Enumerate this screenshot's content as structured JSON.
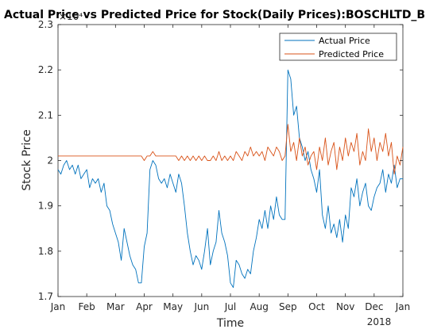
{
  "chart_data": {
    "type": "line",
    "title": "Actual Price vs Predicted Price for Stock(Daily Prices):BOSCHLTD_B",
    "xlabel": "Time",
    "ylabel": "Stock Price",
    "y_exponent_label": "×10⁴",
    "year_label": "2018",
    "xlim": [
      0,
      12
    ],
    "ylim": [
      1.7,
      2.3
    ],
    "x_ticks": [
      {
        "label": "Jan",
        "value": 0
      },
      {
        "label": "Feb",
        "value": 1
      },
      {
        "label": "Mar",
        "value": 2
      },
      {
        "label": "Apr",
        "value": 3
      },
      {
        "label": "May",
        "value": 4
      },
      {
        "label": "Jun",
        "value": 5
      },
      {
        "label": "Jul",
        "value": 6
      },
      {
        "label": "Aug",
        "value": 7
      },
      {
        "label": "Sep",
        "value": 8
      },
      {
        "label": "Oct",
        "value": 9
      },
      {
        "label": "Nov",
        "value": 10
      },
      {
        "label": "Dec",
        "value": 11
      },
      {
        "label": "Jan",
        "value": 12
      }
    ],
    "y_ticks": [
      1.7,
      1.8,
      1.9,
      2.0,
      2.1,
      2.2,
      2.3
    ],
    "y_tick_labels": [
      "1.7",
      "1.8",
      "1.9",
      "2",
      "2.1",
      "2.2",
      "2.3"
    ],
    "grid": false,
    "legend_position": "top-right",
    "series": [
      {
        "name": "Actual Price",
        "color": "#0072BD",
        "x": [
          0.0,
          0.1,
          0.2,
          0.3,
          0.4,
          0.5,
          0.6,
          0.7,
          0.8,
          0.9,
          1.0,
          1.1,
          1.2,
          1.3,
          1.4,
          1.5,
          1.6,
          1.7,
          1.8,
          1.9,
          2.0,
          2.1,
          2.2,
          2.3,
          2.4,
          2.5,
          2.6,
          2.7,
          2.8,
          2.9,
          3.0,
          3.1,
          3.2,
          3.3,
          3.4,
          3.5,
          3.6,
          3.7,
          3.8,
          3.9,
          4.0,
          4.1,
          4.2,
          4.3,
          4.4,
          4.5,
          4.6,
          4.7,
          4.8,
          4.9,
          5.0,
          5.1,
          5.2,
          5.3,
          5.4,
          5.5,
          5.6,
          5.7,
          5.8,
          5.9,
          6.0,
          6.1,
          6.2,
          6.3,
          6.4,
          6.5,
          6.6,
          6.7,
          6.8,
          6.9,
          7.0,
          7.1,
          7.2,
          7.3,
          7.4,
          7.5,
          7.6,
          7.7,
          7.8,
          7.9,
          8.0,
          8.1,
          8.2,
          8.3,
          8.4,
          8.5,
          8.6,
          8.7,
          8.8,
          8.9,
          9.0,
          9.1,
          9.2,
          9.3,
          9.4,
          9.5,
          9.6,
          9.7,
          9.8,
          9.9,
          10.0,
          10.1,
          10.2,
          10.3,
          10.4,
          10.5,
          10.6,
          10.7,
          10.8,
          10.9,
          11.0,
          11.1,
          11.2,
          11.3,
          11.4,
          11.5,
          11.6,
          11.7,
          11.8,
          11.9,
          12.0
        ],
        "values": [
          1.98,
          1.97,
          1.99,
          2.0,
          1.98,
          1.99,
          1.97,
          1.99,
          1.96,
          1.97,
          1.98,
          1.94,
          1.96,
          1.95,
          1.96,
          1.93,
          1.95,
          1.9,
          1.89,
          1.86,
          1.84,
          1.82,
          1.78,
          1.85,
          1.82,
          1.79,
          1.77,
          1.76,
          1.73,
          1.73,
          1.81,
          1.84,
          1.98,
          2.0,
          1.99,
          1.96,
          1.95,
          1.96,
          1.94,
          1.97,
          1.95,
          1.93,
          1.97,
          1.95,
          1.9,
          1.84,
          1.8,
          1.77,
          1.79,
          1.78,
          1.76,
          1.8,
          1.85,
          1.77,
          1.8,
          1.82,
          1.89,
          1.84,
          1.82,
          1.79,
          1.73,
          1.72,
          1.78,
          1.77,
          1.75,
          1.74,
          1.76,
          1.75,
          1.8,
          1.83,
          1.87,
          1.85,
          1.89,
          1.85,
          1.9,
          1.87,
          1.92,
          1.88,
          1.87,
          1.87,
          2.2,
          2.18,
          2.1,
          2.12,
          2.05,
          2.03,
          2.0,
          2.02,
          1.98,
          1.96,
          1.93,
          1.98,
          1.88,
          1.85,
          1.9,
          1.84,
          1.86,
          1.83,
          1.87,
          1.82,
          1.88,
          1.85,
          1.94,
          1.92,
          1.96,
          1.9,
          1.93,
          1.95,
          1.9,
          1.89,
          1.92,
          1.94,
          1.95,
          1.98,
          1.93,
          1.97,
          1.95,
          1.99,
          1.94,
          1.96,
          1.96
        ]
      },
      {
        "name": "Predicted Price",
        "color": "#D95319",
        "x": [
          0.0,
          0.1,
          0.2,
          0.3,
          0.4,
          0.5,
          0.6,
          0.7,
          0.8,
          0.9,
          1.0,
          1.1,
          1.2,
          1.3,
          1.4,
          1.5,
          1.6,
          1.7,
          1.8,
          1.9,
          2.0,
          2.1,
          2.2,
          2.3,
          2.4,
          2.5,
          2.6,
          2.7,
          2.8,
          2.9,
          3.0,
          3.1,
          3.2,
          3.3,
          3.4,
          3.5,
          3.6,
          3.7,
          3.8,
          3.9,
          4.0,
          4.1,
          4.2,
          4.3,
          4.4,
          4.5,
          4.6,
          4.7,
          4.8,
          4.9,
          5.0,
          5.1,
          5.2,
          5.3,
          5.4,
          5.5,
          5.6,
          5.7,
          5.8,
          5.9,
          6.0,
          6.1,
          6.2,
          6.3,
          6.4,
          6.5,
          6.6,
          6.7,
          6.8,
          6.9,
          7.0,
          7.1,
          7.2,
          7.3,
          7.4,
          7.5,
          7.6,
          7.7,
          7.8,
          7.9,
          8.0,
          8.1,
          8.2,
          8.3,
          8.4,
          8.5,
          8.6,
          8.7,
          8.8,
          8.9,
          9.0,
          9.1,
          9.2,
          9.3,
          9.4,
          9.5,
          9.6,
          9.7,
          9.8,
          9.9,
          10.0,
          10.1,
          10.2,
          10.3,
          10.4,
          10.5,
          10.6,
          10.7,
          10.8,
          10.9,
          11.0,
          11.1,
          11.2,
          11.3,
          11.4,
          11.5,
          11.6,
          11.7,
          11.8,
          11.9,
          12.0
        ],
        "values": [
          2.01,
          2.01,
          2.01,
          2.01,
          2.01,
          2.01,
          2.01,
          2.01,
          2.01,
          2.01,
          2.01,
          2.01,
          2.01,
          2.01,
          2.01,
          2.01,
          2.01,
          2.01,
          2.01,
          2.01,
          2.01,
          2.01,
          2.01,
          2.01,
          2.01,
          2.01,
          2.01,
          2.01,
          2.01,
          2.01,
          2.0,
          2.01,
          2.01,
          2.02,
          2.01,
          2.01,
          2.01,
          2.01,
          2.01,
          2.01,
          2.01,
          2.01,
          2.0,
          2.01,
          2.0,
          2.01,
          2.0,
          2.01,
          2.0,
          2.01,
          2.0,
          2.01,
          2.0,
          2.0,
          2.01,
          2.0,
          2.02,
          2.0,
          2.01,
          2.0,
          2.01,
          2.0,
          2.02,
          2.01,
          2.0,
          2.02,
          2.01,
          2.03,
          2.01,
          2.02,
          2.01,
          2.02,
          2.0,
          2.03,
          2.02,
          2.01,
          2.03,
          2.02,
          2.0,
          2.01,
          2.08,
          2.02,
          2.04,
          2.0,
          2.05,
          2.01,
          2.03,
          1.99,
          2.01,
          2.02,
          1.98,
          2.03,
          2.0,
          2.05,
          1.99,
          2.02,
          2.04,
          1.98,
          2.03,
          2.0,
          2.05,
          2.01,
          2.04,
          2.02,
          2.06,
          1.99,
          2.02,
          2.0,
          2.07,
          2.02,
          2.05,
          2.0,
          2.04,
          2.02,
          2.06,
          2.01,
          2.04,
          1.97,
          2.01,
          1.99,
          2.03
        ]
      }
    ]
  }
}
